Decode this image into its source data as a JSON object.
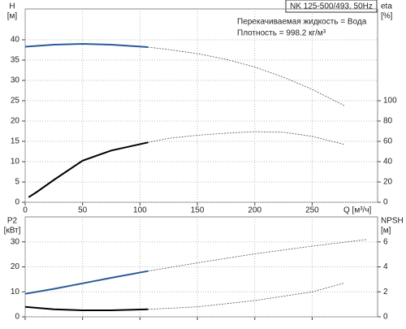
{
  "chart_data": [
    {
      "type": "line",
      "title": "NK 125-500/493, 50Hz",
      "annotations": [
        "Перекачиваемая жидкость = Вода",
        "Плотность = 998.2 кг/м³"
      ],
      "xlabel": "Q [м³/ч]",
      "ylabel": "H",
      "yunit": "[м]",
      "y2label": "eta",
      "y2unit": "[%]",
      "xlim": [
        0,
        307
      ],
      "xticks": [
        0,
        50,
        100,
        150,
        200,
        250
      ],
      "ylim": [
        0,
        47.6
      ],
      "yticks": [
        0,
        5,
        10,
        15,
        20,
        25,
        30,
        35,
        40
      ],
      "y2lim": [
        0,
        190.4
      ],
      "y2ticks": [
        0,
        20,
        40,
        60,
        80,
        100
      ],
      "grid": true,
      "series": [
        {
          "color": "#2b5a97",
          "dashed": false,
          "x": [
            0,
            25,
            50,
            75,
            107
          ],
          "values": [
            38.3,
            38.8,
            39.0,
            38.8,
            38.2
          ]
        },
        {
          "color": "#555555",
          "dashed": true,
          "x": [
            107,
            125,
            150,
            175,
            200,
            225,
            250,
            278
          ],
          "values": [
            38.2,
            37.6,
            36.6,
            35.2,
            33.3,
            30.8,
            27.8,
            23.8
          ]
        },
        {
          "color": "#000000",
          "dashed": false,
          "axis": "y2",
          "x": [
            3,
            10,
            25,
            50,
            75,
            107
          ],
          "values": [
            5,
            10,
            22,
            41,
            51,
            59
          ]
        },
        {
          "color": "#555555",
          "dashed": true,
          "axis": "y2",
          "x": [
            107,
            125,
            150,
            175,
            200,
            225,
            250,
            278
          ],
          "values": [
            59,
            63,
            66,
            68,
            69.5,
            69,
            65,
            57
          ]
        }
      ]
    },
    {
      "type": "line",
      "ylabel": "P2",
      "yunit": "[кВт]",
      "y2label": "NPSH",
      "y2unit": "[м]",
      "xlim": [
        0,
        307
      ],
      "xticks": [
        0,
        50,
        100,
        150,
        200,
        250
      ],
      "ylim": [
        0,
        40
      ],
      "yticks": [
        0,
        10,
        20,
        30
      ],
      "y2lim": [
        0,
        8
      ],
      "y2ticks": [
        0,
        2,
        4,
        6
      ],
      "grid": true,
      "series": [
        {
          "color": "#2b5a97",
          "dashed": false,
          "x": [
            0,
            25,
            50,
            75,
            107
          ],
          "values": [
            9.2,
            11.2,
            13.4,
            15.6,
            18.3
          ]
        },
        {
          "color": "#555555",
          "dashed": true,
          "x": [
            107,
            150,
            200,
            250,
            298
          ],
          "values": [
            18.3,
            21.6,
            25.2,
            28.3,
            31.0
          ]
        },
        {
          "color": "#000000",
          "dashed": false,
          "axis": "y2",
          "x": [
            0,
            25,
            50,
            75,
            107
          ],
          "values": [
            0.8,
            0.6,
            0.52,
            0.52,
            0.6
          ]
        },
        {
          "color": "#555555",
          "dashed": true,
          "axis": "y2",
          "x": [
            107,
            150,
            200,
            250,
            278
          ],
          "values": [
            0.6,
            0.8,
            1.3,
            2.0,
            2.7
          ]
        }
      ]
    }
  ]
}
